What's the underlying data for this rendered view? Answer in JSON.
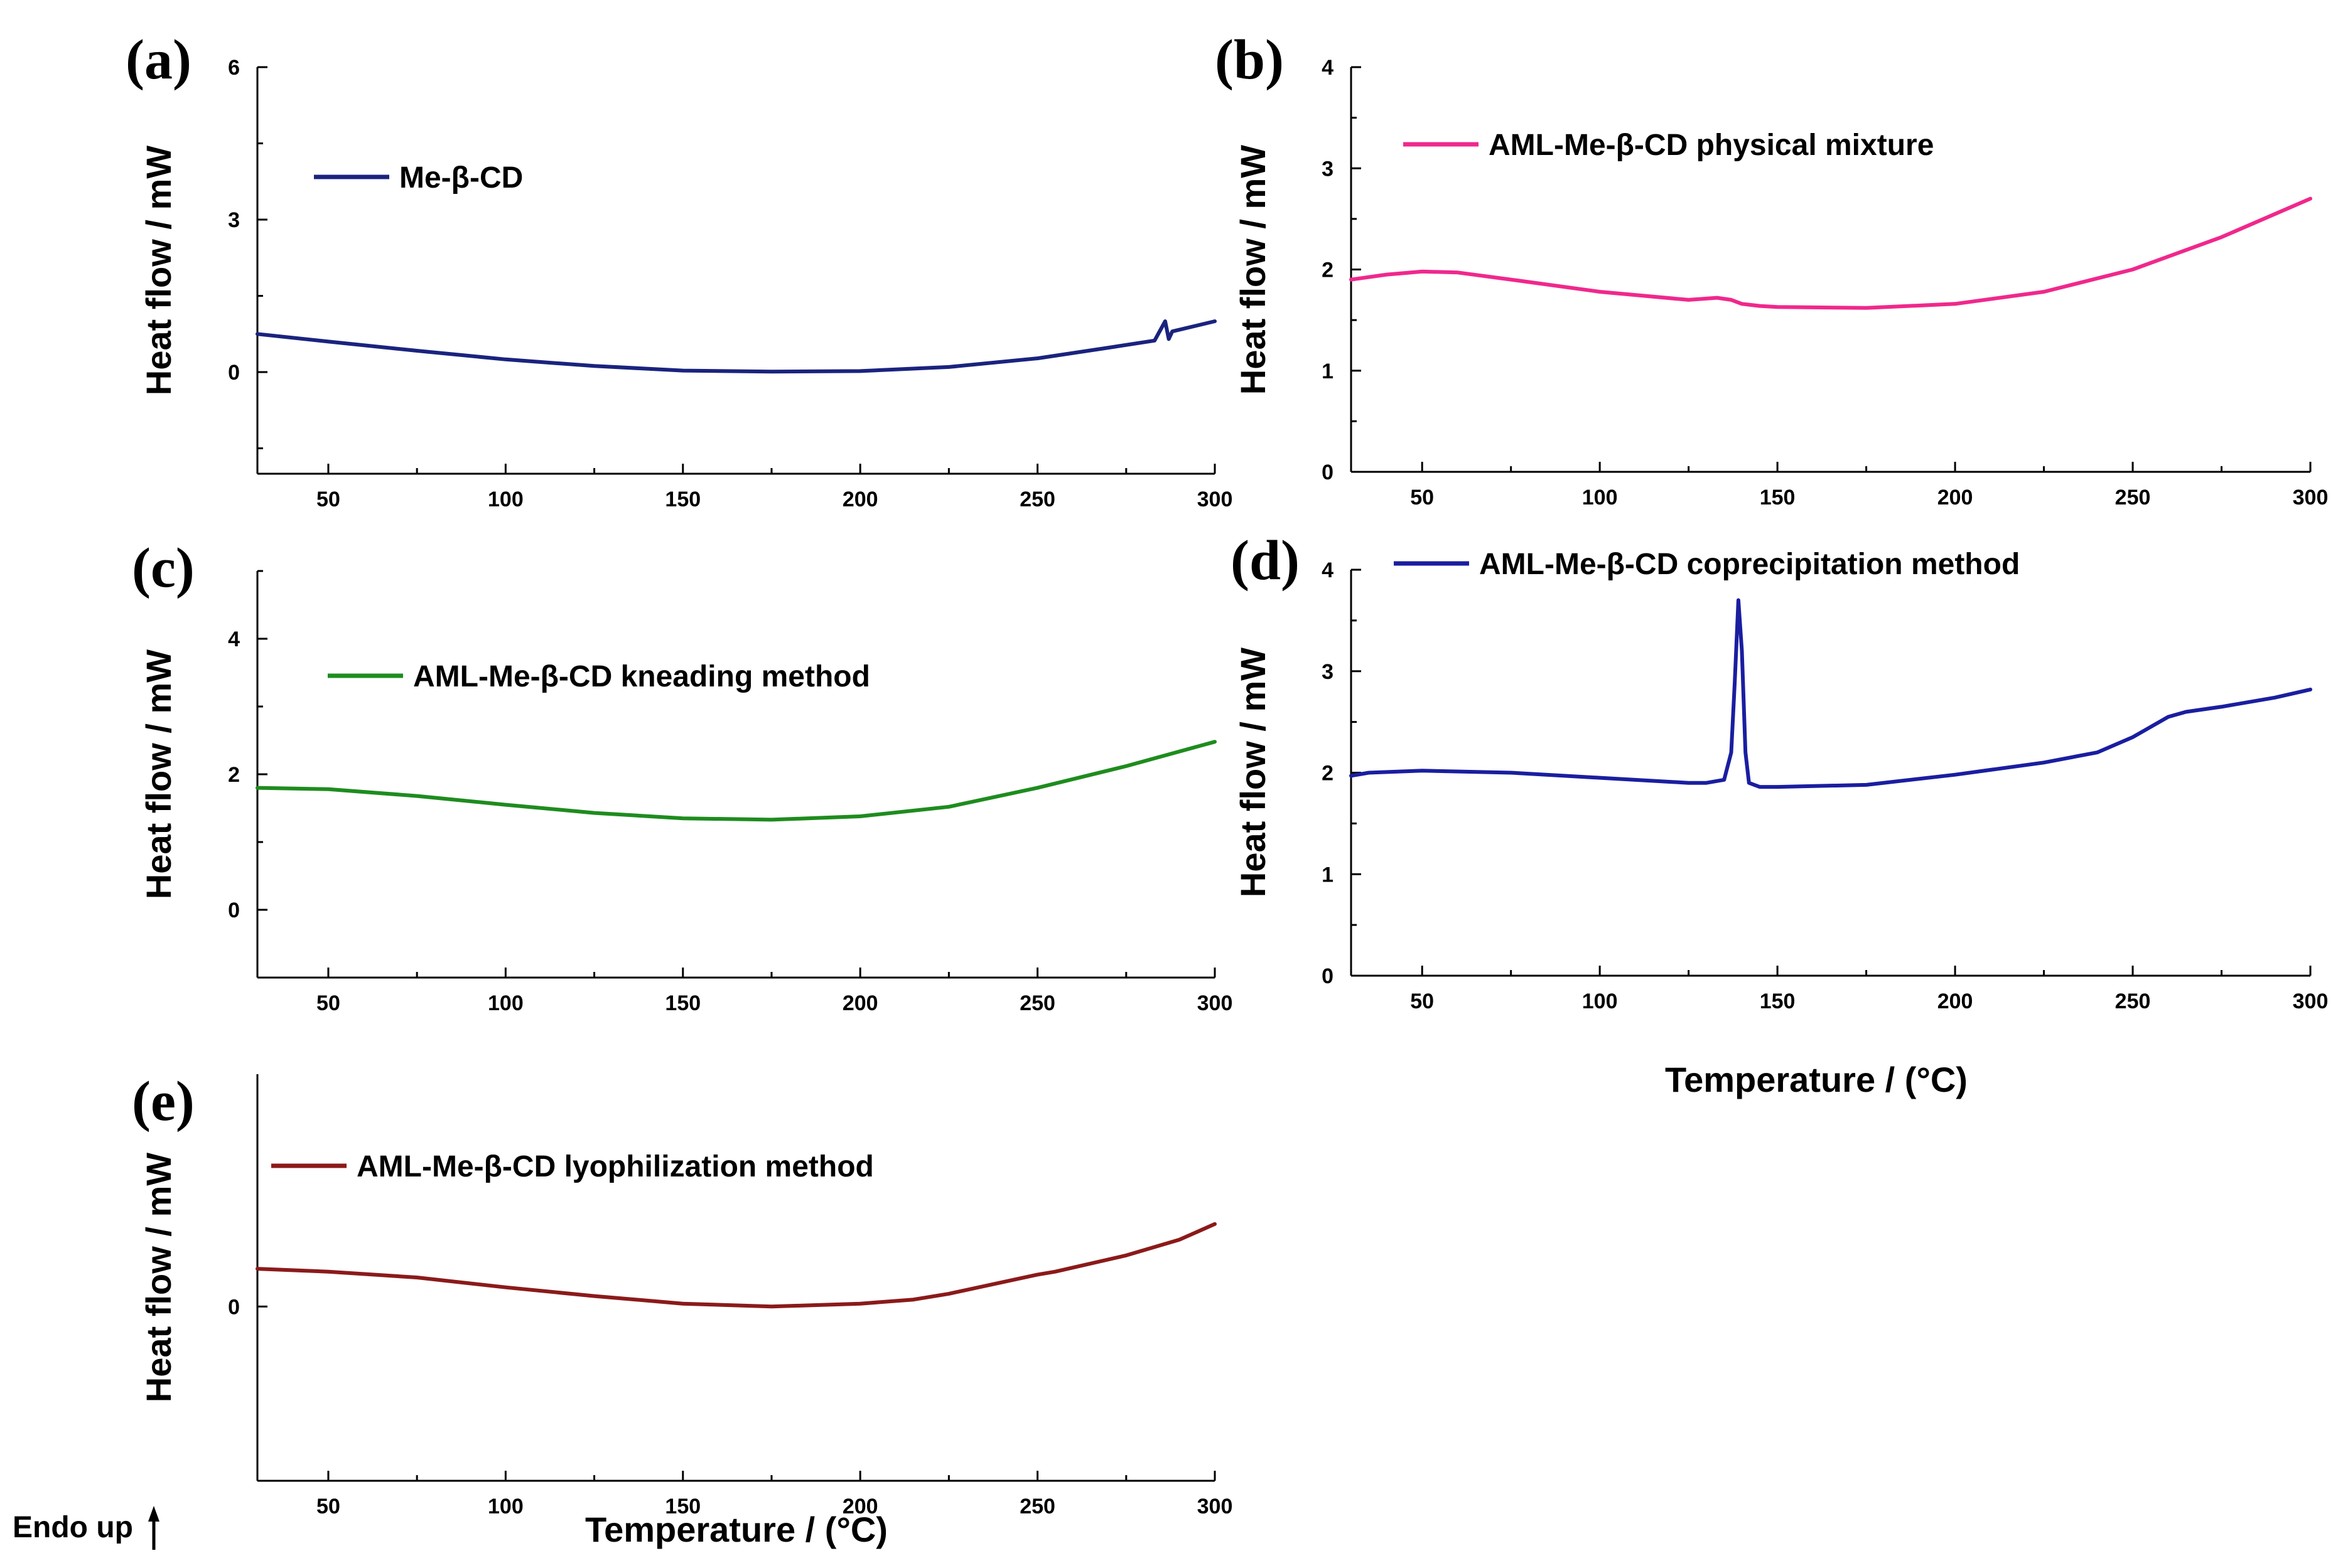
{
  "figure": {
    "endo_label": "Endo up",
    "shared_xlabel": "Temperature / (°C)"
  },
  "chart_data": [
    {
      "id": "a",
      "type": "line",
      "panel_label": "(a)",
      "xlabel": "",
      "ylabel": "Heat flow / mW",
      "xlim": [
        30,
        300
      ],
      "ylim": [
        -2,
        6
      ],
      "x_ticks": [
        50,
        100,
        150,
        200,
        250,
        300
      ],
      "y_ticks": [
        0,
        3,
        6
      ],
      "legend": "Me-β-CD",
      "color": "#1a237e",
      "series": [
        {
          "name": "Me-β-CD",
          "x": [
            30,
            50,
            75,
            100,
            125,
            150,
            175,
            200,
            225,
            250,
            270,
            283,
            286,
            287,
            288,
            300
          ],
          "y": [
            0.75,
            0.6,
            0.42,
            0.25,
            0.12,
            0.03,
            0.01,
            0.02,
            0.1,
            0.27,
            0.48,
            0.62,
            1.0,
            0.65,
            0.8,
            1.0
          ]
        }
      ]
    },
    {
      "id": "b",
      "type": "line",
      "panel_label": "(b)",
      "xlabel": "",
      "ylabel": "Heat flow / mW",
      "xlim": [
        30,
        300
      ],
      "ylim": [
        0,
        4
      ],
      "x_ticks": [
        50,
        100,
        150,
        200,
        250,
        300
      ],
      "y_ticks": [
        0,
        1,
        2,
        3,
        4
      ],
      "legend": "AML-Me-β-CD physical mixture",
      "color": "#f0288c",
      "series": [
        {
          "name": "AML-Me-β-CD physical mixture",
          "x": [
            30,
            40,
            50,
            60,
            75,
            100,
            125,
            133,
            137,
            140,
            145,
            150,
            175,
            200,
            225,
            250,
            275,
            300
          ],
          "y": [
            1.9,
            1.95,
            1.98,
            1.97,
            1.9,
            1.78,
            1.7,
            1.72,
            1.7,
            1.66,
            1.64,
            1.63,
            1.62,
            1.66,
            1.78,
            2.0,
            2.32,
            2.7
          ]
        }
      ]
    },
    {
      "id": "c",
      "type": "line",
      "panel_label": "(c)",
      "xlabel": "",
      "ylabel": "Heat flow / mW",
      "xlim": [
        30,
        300
      ],
      "ylim": [
        -1,
        5
      ],
      "x_ticks": [
        50,
        100,
        150,
        200,
        250,
        300
      ],
      "y_ticks": [
        0,
        2,
        4
      ],
      "legend": "AML-Me-β-CD kneading method",
      "color": "#1e8c1e",
      "series": [
        {
          "name": "AML-Me-β-CD kneading method",
          "x": [
            30,
            50,
            75,
            100,
            125,
            150,
            175,
            200,
            225,
            250,
            275,
            300
          ],
          "y": [
            1.8,
            1.78,
            1.68,
            1.55,
            1.43,
            1.35,
            1.33,
            1.38,
            1.52,
            1.8,
            2.12,
            2.48
          ]
        }
      ]
    },
    {
      "id": "d",
      "type": "line",
      "panel_label": "(d)",
      "xlabel": "Temperature / (°C)",
      "ylabel": "Heat flow / mW",
      "xlim": [
        30,
        300
      ],
      "ylim": [
        0,
        4
      ],
      "x_ticks": [
        50,
        100,
        150,
        200,
        250,
        300
      ],
      "y_ticks": [
        0,
        1,
        2,
        3,
        4
      ],
      "legend": "AML-Me-β-CD coprecipitation method",
      "color": "#1a1ea0",
      "series": [
        {
          "name": "AML-Me-β-CD coprecipitation method",
          "x": [
            30,
            35,
            50,
            75,
            100,
            125,
            130,
            135,
            137,
            138,
            139,
            140,
            141,
            142,
            145,
            150,
            175,
            200,
            225,
            240,
            250,
            255,
            260,
            265,
            275,
            290,
            300
          ],
          "y": [
            1.97,
            2.0,
            2.02,
            2.0,
            1.95,
            1.9,
            1.9,
            1.93,
            2.2,
            2.9,
            3.7,
            3.2,
            2.2,
            1.9,
            1.86,
            1.86,
            1.88,
            1.98,
            2.1,
            2.2,
            2.35,
            2.45,
            2.55,
            2.6,
            2.65,
            2.74,
            2.82
          ]
        }
      ]
    },
    {
      "id": "e",
      "type": "line",
      "panel_label": "(e)",
      "xlabel": "Temperature / (°C)",
      "ylabel": "Heat flow / mW",
      "xlim": [
        30,
        300
      ],
      "ylim": [
        -3,
        4
      ],
      "x_ticks": [
        50,
        100,
        150,
        200,
        250,
        300
      ],
      "y_ticks": [
        0
      ],
      "legend": "AML-Me-β-CD lyophilization method",
      "color": "#8b1a1a",
      "series": [
        {
          "name": "AML-Me-β-CD lyophilization method",
          "x": [
            30,
            50,
            75,
            100,
            125,
            150,
            175,
            200,
            215,
            225,
            250,
            255,
            275,
            290,
            300
          ],
          "y": [
            0.65,
            0.6,
            0.5,
            0.33,
            0.18,
            0.05,
            0.0,
            0.05,
            0.12,
            0.22,
            0.55,
            0.6,
            0.88,
            1.15,
            1.42
          ]
        }
      ]
    }
  ]
}
